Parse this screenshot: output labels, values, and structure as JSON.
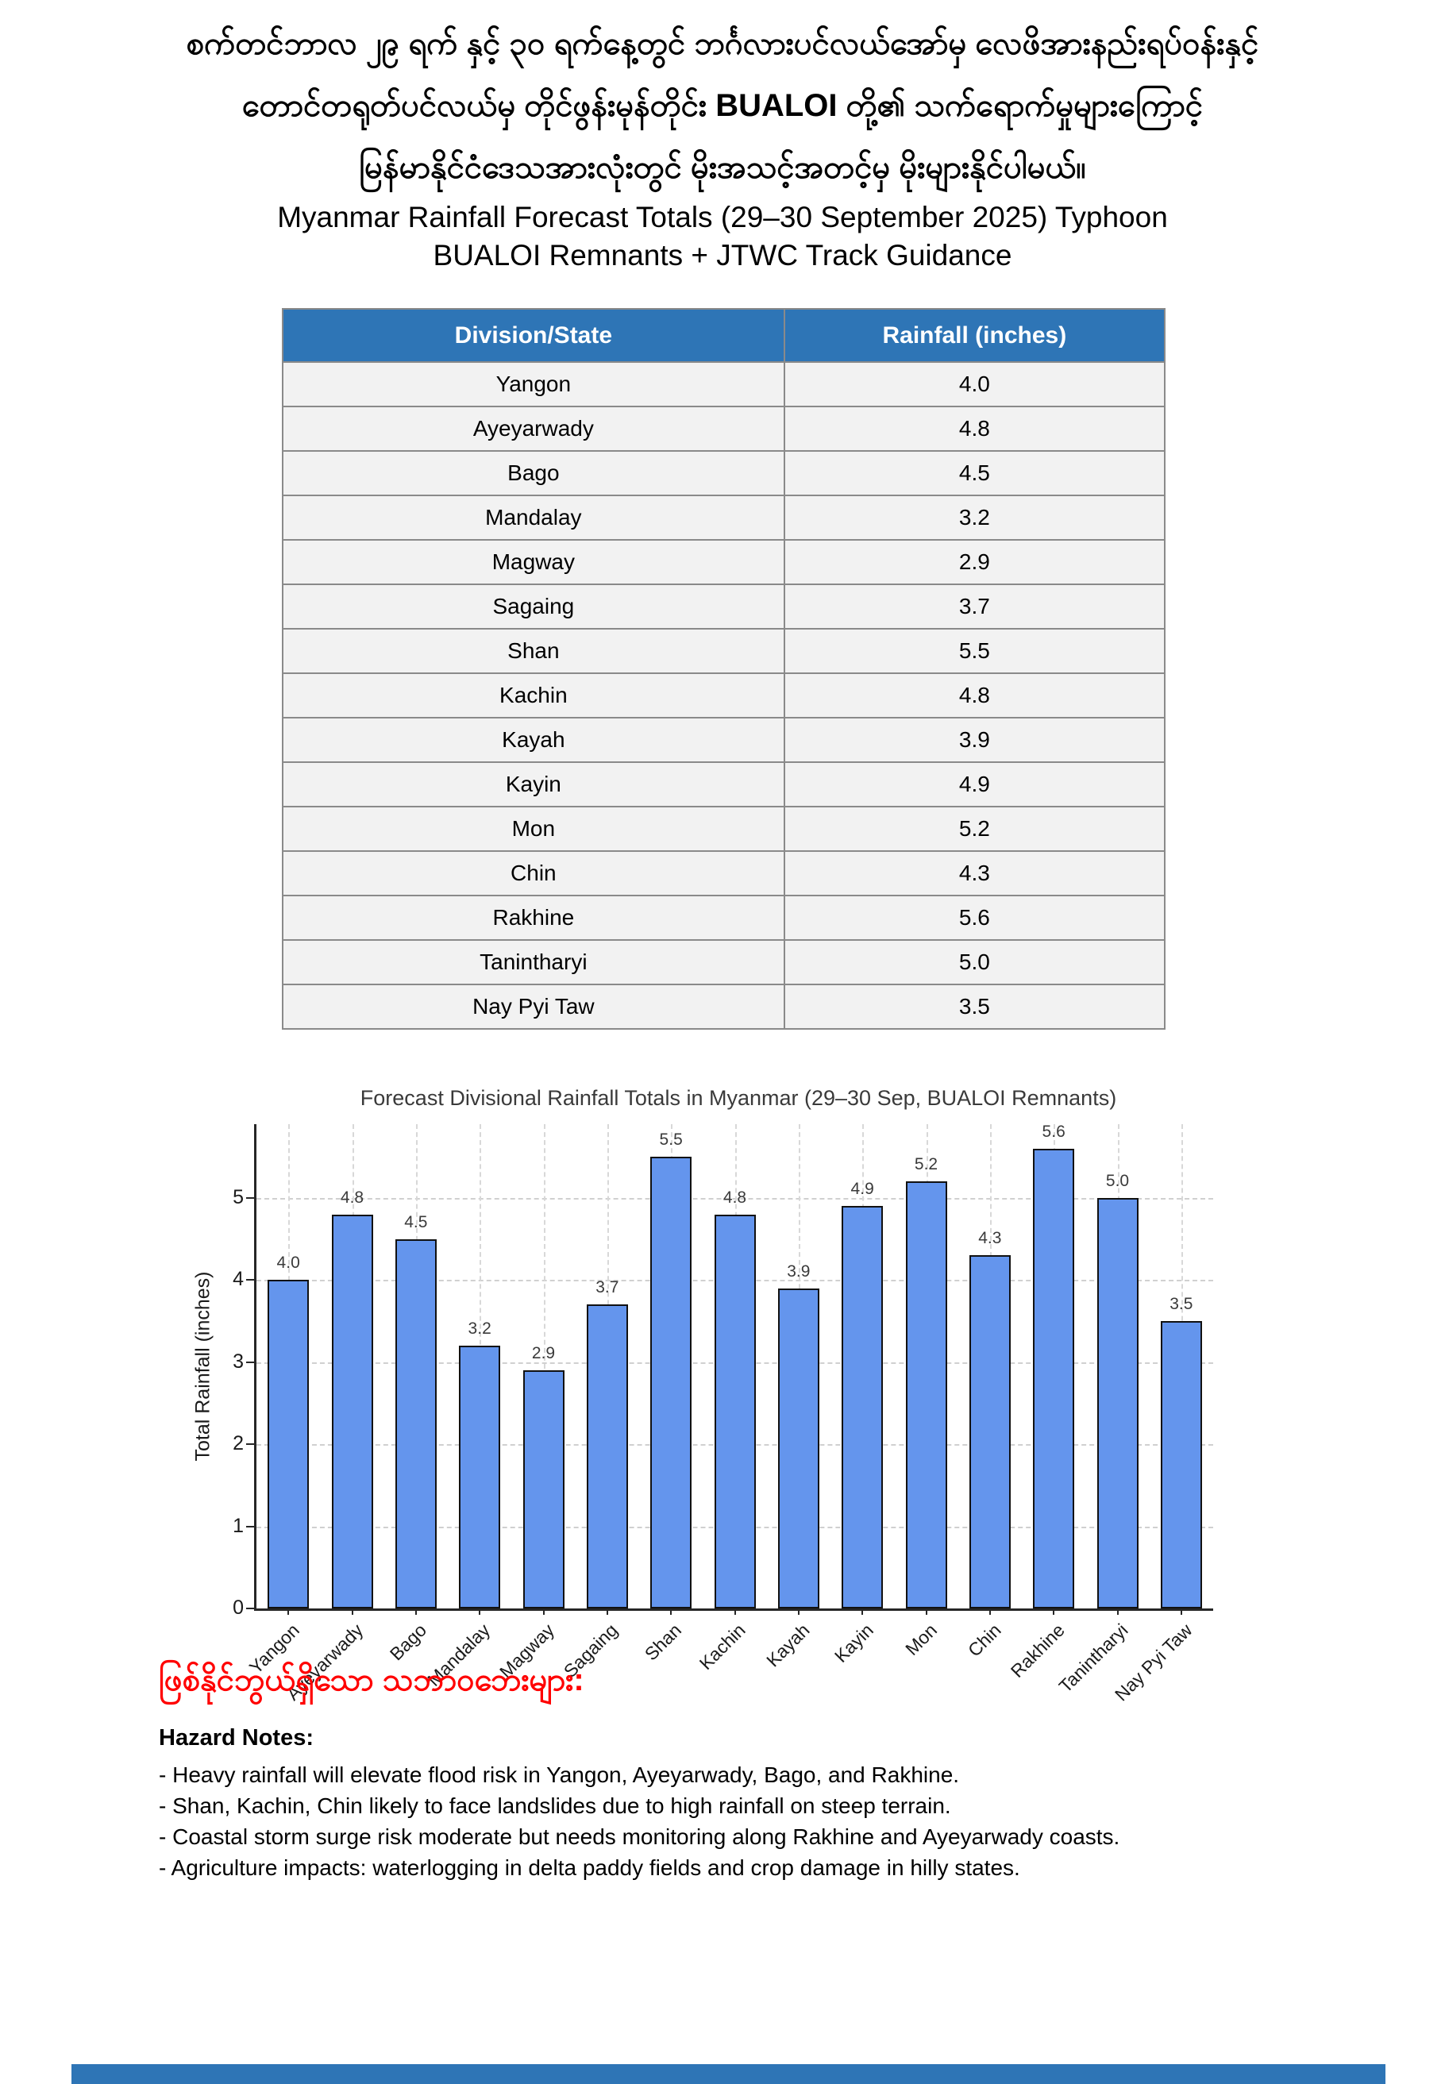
{
  "page": {
    "title_burmese_lines": [
      "စက်တင်ဘာလ ၂၉ ရက် နှင့် ၃၀ ရက်နေ့တွင် ဘင်္ဂလားပင်လယ်အော်မှ လေဖိအားနည်းရပ်ဝန်းနှင့်",
      "တောင်တရုတ်ပင်လယ်မှ တိုင်ဖွန်းမုန်တိုင်း BUALOI တို့၏ သက်ရောက်မှုများကြောင့်",
      "မြန်မာနိုင်ငံဒေသအားလုံးတွင် မိုးအသင့်အတင့်မှ မိုးများနိုင်ပါမယ်။"
    ],
    "title_english": "Myanmar Rainfall Forecast Totals (29–30 September 2025) Typhoon BUALOI Remnants + JTWC Track Guidance"
  },
  "table": {
    "headers": [
      "Division/State",
      "Rainfall (inches)"
    ],
    "rows": [
      [
        "Yangon",
        "4.0"
      ],
      [
        "Ayeyarwady",
        "4.8"
      ],
      [
        "Bago",
        "4.5"
      ],
      [
        "Mandalay",
        "3.2"
      ],
      [
        "Magway",
        "2.9"
      ],
      [
        "Sagaing",
        "3.7"
      ],
      [
        "Shan",
        "5.5"
      ],
      [
        "Kachin",
        "4.8"
      ],
      [
        "Kayah",
        "3.9"
      ],
      [
        "Kayin",
        "4.9"
      ],
      [
        "Mon",
        "5.2"
      ],
      [
        "Chin",
        "4.3"
      ],
      [
        "Rakhine",
        "5.6"
      ],
      [
        "Tanintharyi",
        "5.0"
      ],
      [
        "Nay Pyi Taw",
        "3.5"
      ]
    ],
    "header_bg": "#2E75B6",
    "header_text_color": "#FFFFFF",
    "row_bg": "#F2F2F2",
    "border_color": "#8A8A8A"
  },
  "chart_data": {
    "type": "bar",
    "title": "Forecast Divisional Rainfall Totals in Myanmar (29–30 Sep, BUALOI Remnants)",
    "categories": [
      "Yangon",
      "Ayeyarwady",
      "Bago",
      "Mandalay",
      "Magway",
      "Sagaing",
      "Shan",
      "Kachin",
      "Kayah",
      "Kayin",
      "Mon",
      "Chin",
      "Rakhine",
      "Tanintharyi",
      "Nay Pyi Taw"
    ],
    "values": [
      4.0,
      4.8,
      4.5,
      3.2,
      2.9,
      3.7,
      5.5,
      4.8,
      3.9,
      4.9,
      5.2,
      4.3,
      5.6,
      5.0,
      3.5
    ],
    "value_labels": [
      "4.0",
      "4.8",
      "4.5",
      "3.2",
      "2.9",
      "3.7",
      "5.5",
      "4.8",
      "3.9",
      "4.9",
      "5.2",
      "4.3",
      "5.6",
      "5.0",
      "3.5"
    ],
    "xlabel": "",
    "ylabel": "Total Rainfall (inches)",
    "ylim": [
      0,
      5.9
    ],
    "yticks": [
      0,
      1,
      2,
      3,
      4,
      5
    ],
    "grid": "dashed",
    "legend": "none",
    "bar_color": "#6495ED",
    "bar_edge_color": "#111111"
  },
  "hazards": {
    "heading_burmese": "ဖြစ်နိုင်ဘွယ်ရှိသော သဘာဝဘေးများ:",
    "heading_color": "#FF0000",
    "notes_title": "Hazard Notes:",
    "notes": [
      "- Heavy rainfall will elevate flood risk in Yangon, Ayeyarwady, Bago, and Rakhine.",
      "- Shan, Kachin, Chin likely to face landslides due to high rainfall on steep terrain.",
      "- Coastal storm surge risk moderate but needs monitoring along Rakhine and Ayeyarwady coasts.",
      "- Agriculture impacts: waterlogging in delta paddy fields and crop damage in hilly states."
    ]
  },
  "footer": {
    "cutoff_bar_color": "#2E75B6"
  }
}
